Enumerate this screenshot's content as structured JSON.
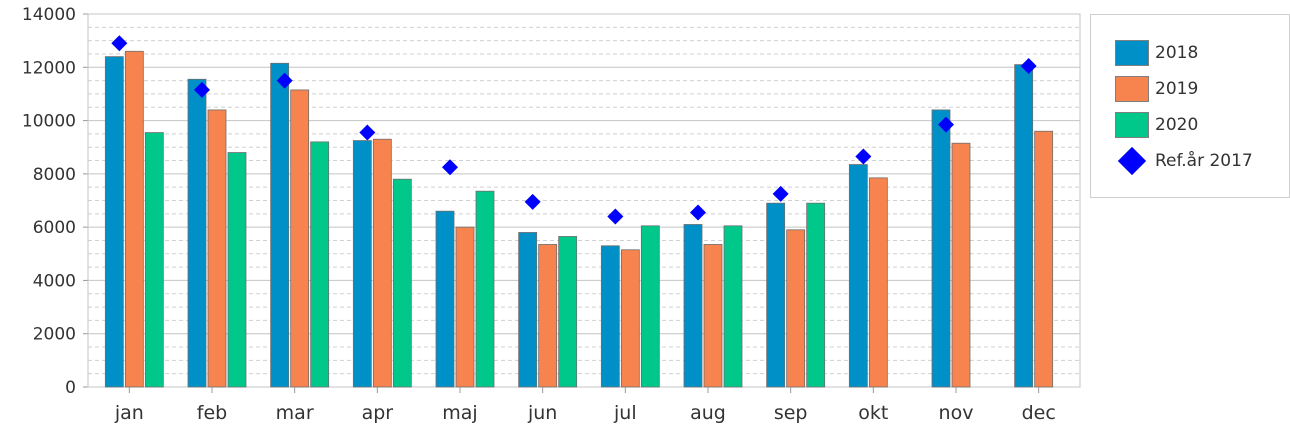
{
  "chart_data": {
    "type": "bar",
    "categories": [
      "jan",
      "feb",
      "mar",
      "apr",
      "maj",
      "jun",
      "jul",
      "aug",
      "sep",
      "okt",
      "nov",
      "dec"
    ],
    "series": [
      {
        "name": "2018",
        "color": "#0090c8",
        "values": [
          12400,
          11550,
          12150,
          9250,
          6600,
          5800,
          5300,
          6100,
          6900,
          8350,
          10400,
          12100
        ]
      },
      {
        "name": "2019",
        "color": "#f7844e",
        "values": [
          12600,
          10400,
          11150,
          9300,
          6000,
          5350,
          5150,
          5350,
          5900,
          7850,
          9150,
          9600
        ]
      },
      {
        "name": "2020",
        "color": "#00c88a",
        "values": [
          9550,
          8800,
          9200,
          7800,
          7350,
          5650,
          6050,
          6050,
          6900,
          null,
          null,
          null
        ]
      }
    ],
    "reference": {
      "name": "Ref.år 2017",
      "color": "#0000ff",
      "marker": "diamond",
      "values": [
        12900,
        11150,
        11500,
        9550,
        8250,
        6950,
        6400,
        6550,
        7250,
        8650,
        9850,
        12050
      ]
    },
    "ylim": [
      0,
      14000
    ],
    "yticks": [
      0,
      2000,
      4000,
      6000,
      8000,
      10000,
      12000,
      14000
    ],
    "grid": true,
    "legend_position": "right",
    "title": "",
    "xlabel": "",
    "ylabel": ""
  }
}
